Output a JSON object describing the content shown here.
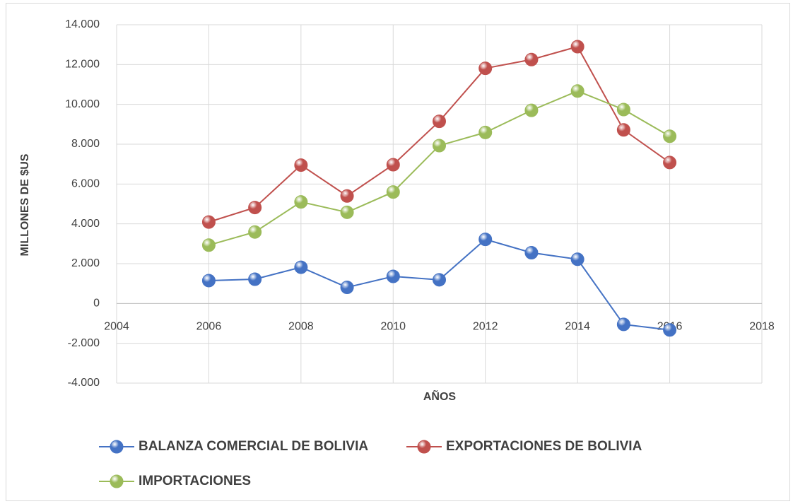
{
  "chart_data": {
    "type": "line",
    "ylabel": "MILLONES DE $US",
    "xlabel": "AÑOS",
    "x": [
      2006,
      2007,
      2008,
      2009,
      2010,
      2011,
      2012,
      2013,
      2014,
      2015,
      2016
    ],
    "series": [
      {
        "name": "BALANZA COMERCIAL DE BOLIVIA",
        "color": "#4472c4",
        "values": [
          1150,
          1220,
          1820,
          810,
          1360,
          1190,
          3220,
          2550,
          2220,
          -1050,
          -1330
        ]
      },
      {
        "name": "EXPORTACIONES DE BOLIVIA",
        "color": "#c0504d",
        "values": [
          4090,
          4820,
          6950,
          5400,
          6970,
          9150,
          11810,
          12250,
          12900,
          8720,
          7080
        ]
      },
      {
        "name": "IMPORTACIONES",
        "color": "#9bbb59",
        "values": [
          2930,
          3590,
          5100,
          4580,
          5600,
          7930,
          8590,
          9700,
          10670,
          9740,
          8400
        ]
      }
    ],
    "xlim": [
      2004,
      2018
    ],
    "xticks": [
      2004,
      2006,
      2008,
      2010,
      2012,
      2014,
      2016,
      2018
    ],
    "ylim": [
      -4000,
      14000
    ],
    "yticks": [
      {
        "value": -4000,
        "label": "-4.000"
      },
      {
        "value": -2000,
        "label": "-2.000"
      },
      0,
      {
        "value": 2000,
        "label": "2.000"
      },
      {
        "value": 4000,
        "label": "4.000"
      },
      {
        "value": 6000,
        "label": "6.000"
      },
      {
        "value": 8000,
        "label": "8.000"
      },
      {
        "value": 10000,
        "label": "10.000"
      },
      {
        "value": 12000,
        "label": "12.000"
      },
      {
        "value": 14000,
        "label": "14.000"
      }
    ],
    "grid": true,
    "legend": "bottom"
  }
}
